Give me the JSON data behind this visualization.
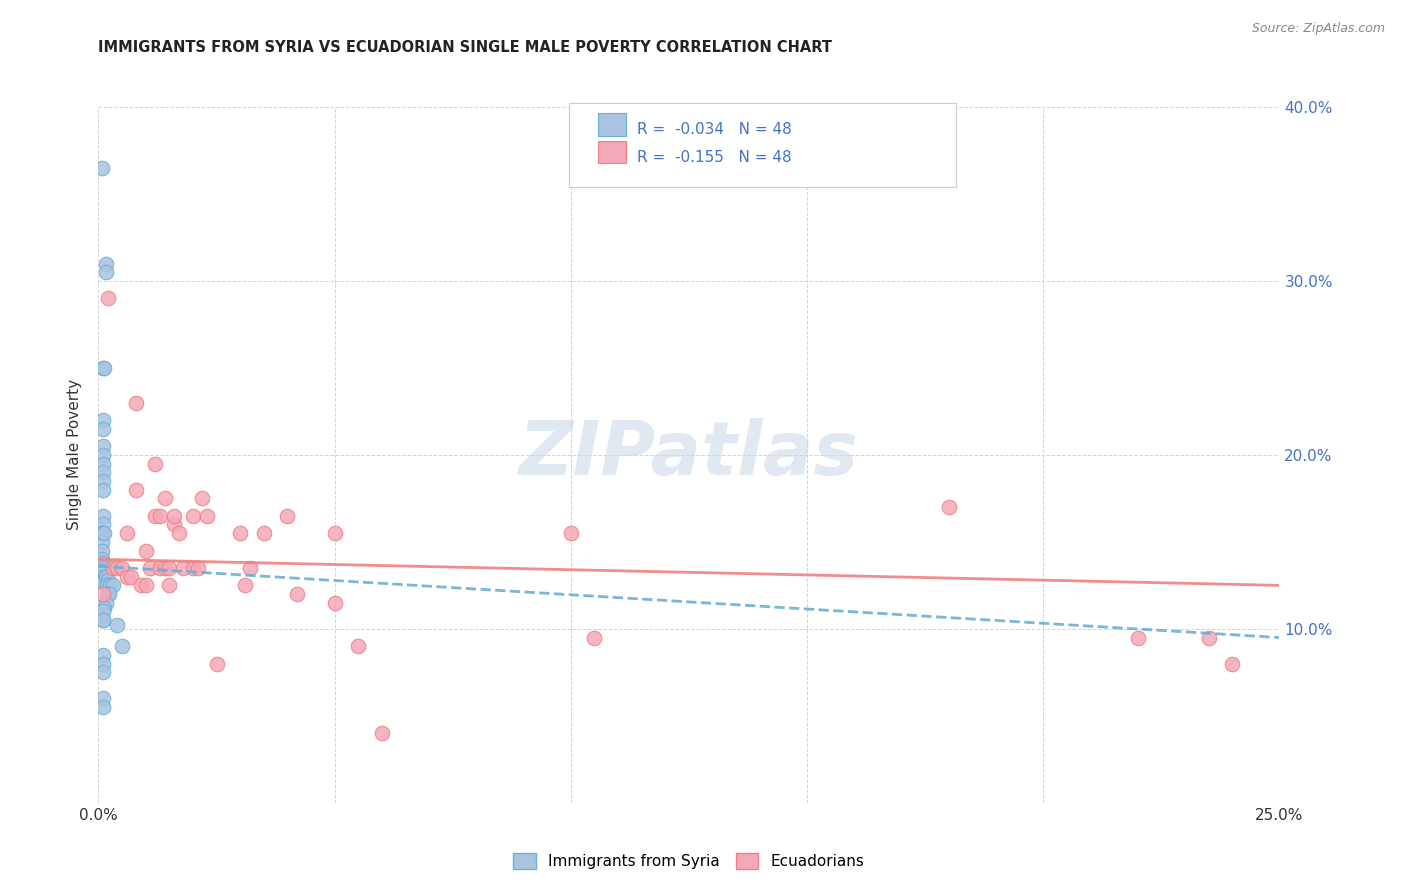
{
  "title": "IMMIGRANTS FROM SYRIA VS ECUADORIAN SINGLE MALE POVERTY CORRELATION CHART",
  "source": "Source: ZipAtlas.com",
  "ylabel": "Single Male Poverty",
  "xlim": [
    0.0,
    0.25
  ],
  "ylim": [
    0.0,
    0.4
  ],
  "legend_label1": "R =  -0.034   N = 48",
  "legend_label2": "R =  -0.155   N = 48",
  "legend_label_bottom1": "Immigrants from Syria",
  "legend_label_bottom2": "Ecuadorians",
  "color_syria": "#a8c4e0",
  "color_ecuador": "#f4a8b8",
  "color_line_syria": "#6baed6",
  "color_line_ecuador": "#f08080",
  "watermark_zip": "ZIP",
  "watermark_atlas": "atlas",
  "syria_x": [
    0.0008,
    0.0015,
    0.0015,
    0.001,
    0.0012,
    0.001,
    0.001,
    0.001,
    0.001,
    0.001,
    0.001,
    0.001,
    0.001,
    0.001,
    0.001,
    0.0008,
    0.0008,
    0.0008,
    0.0012,
    0.0008,
    0.0008,
    0.001,
    0.001,
    0.0008,
    0.0008,
    0.001,
    0.001,
    0.001,
    0.001,
    0.0015,
    0.002,
    0.0018,
    0.0025,
    0.003,
    0.002,
    0.0022,
    0.0015,
    0.0012,
    0.001,
    0.001,
    0.001,
    0.004,
    0.005,
    0.001,
    0.001,
    0.001,
    0.001,
    0.001
  ],
  "syria_y": [
    0.365,
    0.31,
    0.305,
    0.25,
    0.25,
    0.22,
    0.215,
    0.205,
    0.2,
    0.195,
    0.19,
    0.185,
    0.18,
    0.165,
    0.16,
    0.155,
    0.155,
    0.15,
    0.155,
    0.145,
    0.14,
    0.138,
    0.135,
    0.133,
    0.132,
    0.13,
    0.128,
    0.127,
    0.127,
    0.13,
    0.128,
    0.125,
    0.125,
    0.125,
    0.12,
    0.12,
    0.115,
    0.112,
    0.11,
    0.105,
    0.105,
    0.102,
    0.09,
    0.085,
    0.08,
    0.075,
    0.06,
    0.055
  ],
  "ecuador_x": [
    0.001,
    0.002,
    0.003,
    0.004,
    0.005,
    0.006,
    0.006,
    0.007,
    0.008,
    0.008,
    0.009,
    0.01,
    0.01,
    0.011,
    0.012,
    0.012,
    0.013,
    0.013,
    0.014,
    0.014,
    0.015,
    0.015,
    0.016,
    0.016,
    0.017,
    0.018,
    0.02,
    0.02,
    0.021,
    0.022,
    0.023,
    0.025,
    0.03,
    0.031,
    0.032,
    0.035,
    0.04,
    0.042,
    0.05,
    0.05,
    0.055,
    0.06,
    0.1,
    0.105,
    0.18,
    0.22,
    0.235,
    0.24
  ],
  "ecuador_y": [
    0.12,
    0.29,
    0.135,
    0.135,
    0.135,
    0.13,
    0.155,
    0.13,
    0.18,
    0.23,
    0.125,
    0.125,
    0.145,
    0.135,
    0.195,
    0.165,
    0.135,
    0.165,
    0.135,
    0.175,
    0.125,
    0.135,
    0.16,
    0.165,
    0.155,
    0.135,
    0.165,
    0.135,
    0.135,
    0.175,
    0.165,
    0.08,
    0.155,
    0.125,
    0.135,
    0.155,
    0.165,
    0.12,
    0.115,
    0.155,
    0.09,
    0.04,
    0.155,
    0.095,
    0.17,
    0.095,
    0.095,
    0.08
  ],
  "background_color": "#ffffff",
  "grid_color": "#d0d0d0"
}
